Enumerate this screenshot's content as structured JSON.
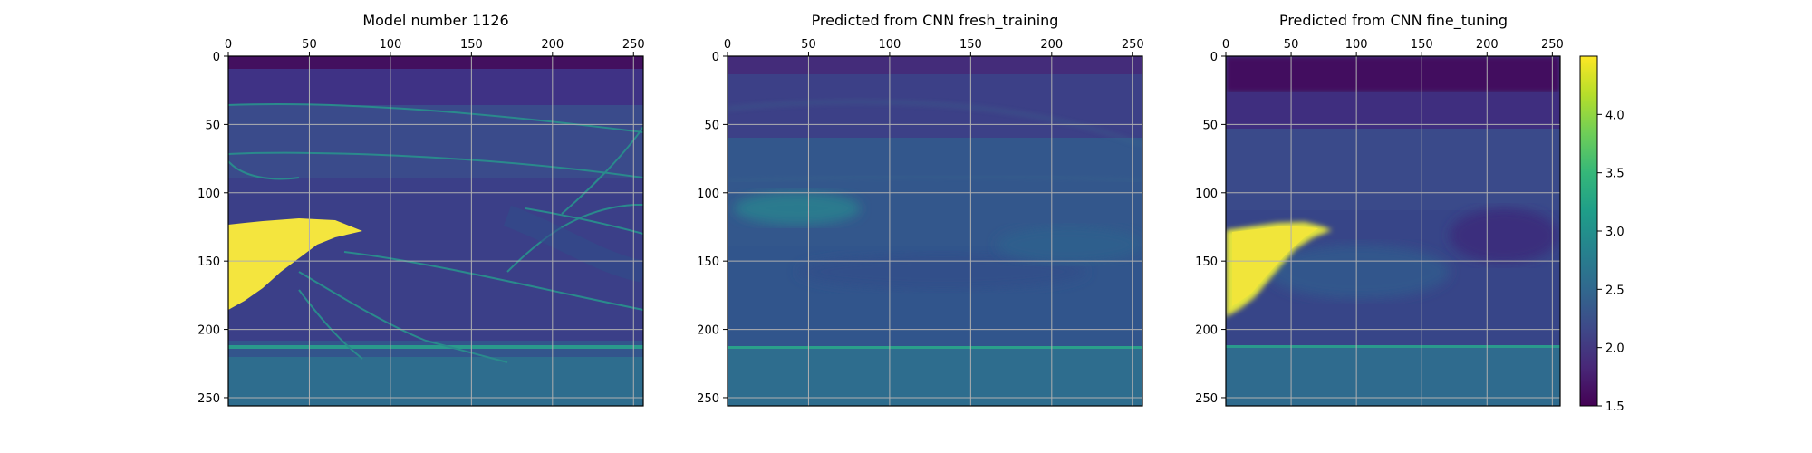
{
  "figure": {
    "panels": [
      {
        "title": "Model number 1126"
      },
      {
        "title": "Predicted from CNN fresh_training"
      },
      {
        "title": "Predicted from CNN fine_tuning"
      }
    ]
  },
  "chart_data": [
    {
      "type": "heatmap",
      "title": "Model number 1126",
      "xlabel": "",
      "ylabel": "",
      "xlim": [
        0,
        256
      ],
      "ylim": [
        256,
        0
      ],
      "xticks": [
        0,
        50,
        100,
        150,
        200,
        250
      ],
      "yticks": [
        0,
        50,
        100,
        150,
        200,
        250
      ],
      "xtick_position": "top",
      "grid": true,
      "colormap": "viridis",
      "zlim": [
        1.5,
        4.5
      ]
    },
    {
      "type": "heatmap",
      "title": "Predicted from CNN fresh_training",
      "xlabel": "",
      "ylabel": "",
      "xlim": [
        0,
        256
      ],
      "ylim": [
        256,
        0
      ],
      "xticks": [
        0,
        50,
        100,
        150,
        200,
        250
      ],
      "yticks": [
        0,
        50,
        100,
        150,
        200,
        250
      ],
      "xtick_position": "top",
      "grid": true,
      "colormap": "viridis",
      "zlim": [
        1.5,
        4.5
      ]
    },
    {
      "type": "heatmap",
      "title": "Predicted from CNN fine_tuning",
      "xlabel": "",
      "ylabel": "",
      "xlim": [
        0,
        256
      ],
      "ylim": [
        256,
        0
      ],
      "xticks": [
        0,
        50,
        100,
        150,
        200,
        250
      ],
      "yticks": [
        0,
        50,
        100,
        150,
        200,
        250
      ],
      "xtick_position": "top",
      "grid": true,
      "colormap": "viridis",
      "zlim": [
        1.5,
        4.5
      ]
    }
  ],
  "colorbar": {
    "ticks": [
      4.0,
      3.5,
      3.0,
      2.5,
      2.0,
      1.5
    ],
    "tick_labels": [
      "4.0",
      "3.5",
      "3.0",
      "2.5",
      "2.0",
      "1.5"
    ],
    "colors": {
      "stops": [
        "#440154",
        "#482878",
        "#3e4989",
        "#31688e",
        "#26828e",
        "#1f9e89",
        "#35b779",
        "#6ece58",
        "#b5de2b",
        "#fde725"
      ]
    }
  },
  "colors": {
    "top_band": "#43105f",
    "upper_layer": "#3a3a80",
    "mid_layer": "#31568c",
    "deep_layer": "#2d6c8e",
    "bottom_layer": "#2c728e",
    "reflector": "#2a9a8c",
    "anomaly": "#f3e53d",
    "frame": "#000000",
    "grid": "#b0b0b0"
  }
}
